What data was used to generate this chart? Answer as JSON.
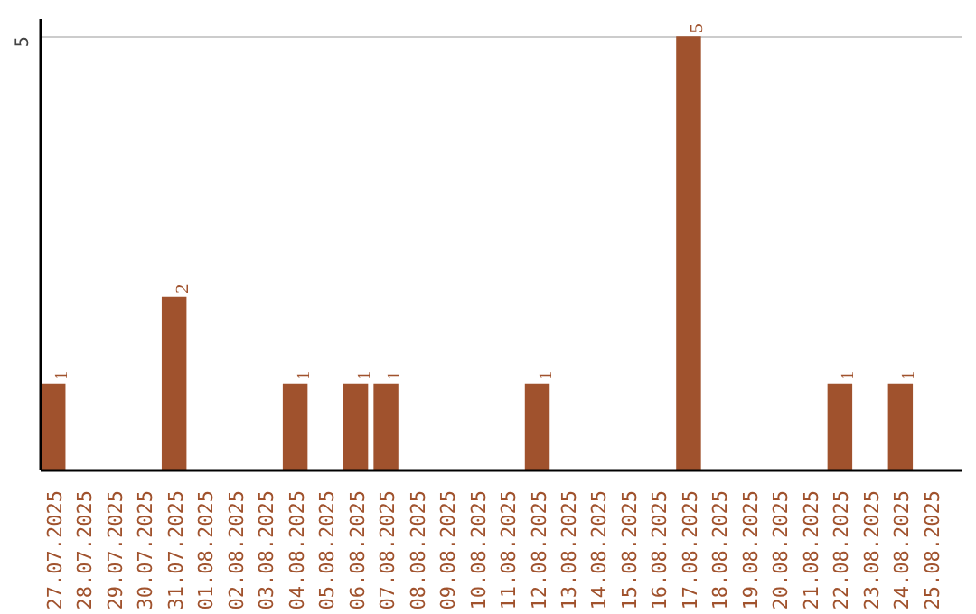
{
  "chart_data": {
    "type": "bar",
    "categories": [
      "27.07.2025",
      "28.07.2025",
      "29.07.2025",
      "30.07.2025",
      "31.07.2025",
      "01.08.2025",
      "02.08.2025",
      "03.08.2025",
      "04.08.2025",
      "05.08.2025",
      "06.08.2025",
      "07.08.2025",
      "08.08.2025",
      "09.08.2025",
      "10.08.2025",
      "11.08.2025",
      "12.08.2025",
      "13.08.2025",
      "14.08.2025",
      "15.08.2025",
      "16.08.2025",
      "17.08.2025",
      "18.08.2025",
      "19.08.2025",
      "20.08.2025",
      "21.08.2025",
      "22.08.2025",
      "23.08.2025",
      "24.08.2025",
      "25.08.2025"
    ],
    "values": [
      1,
      0,
      0,
      0,
      2,
      0,
      0,
      0,
      1,
      0,
      1,
      1,
      0,
      0,
      0,
      0,
      1,
      0,
      0,
      0,
      0,
      5,
      0,
      0,
      0,
      0,
      1,
      0,
      1,
      0
    ],
    "value_labels": [
      "1",
      null,
      null,
      null,
      "2",
      null,
      null,
      null,
      "1",
      null,
      "1",
      "1",
      null,
      null,
      null,
      null,
      "1",
      null,
      null,
      null,
      null,
      "5",
      null,
      null,
      null,
      null,
      "1",
      null,
      "1",
      null
    ],
    "color": "#a0522d",
    "ylim": [
      0,
      5.2
    ],
    "yticks": [
      5
    ],
    "grid": "y"
  }
}
